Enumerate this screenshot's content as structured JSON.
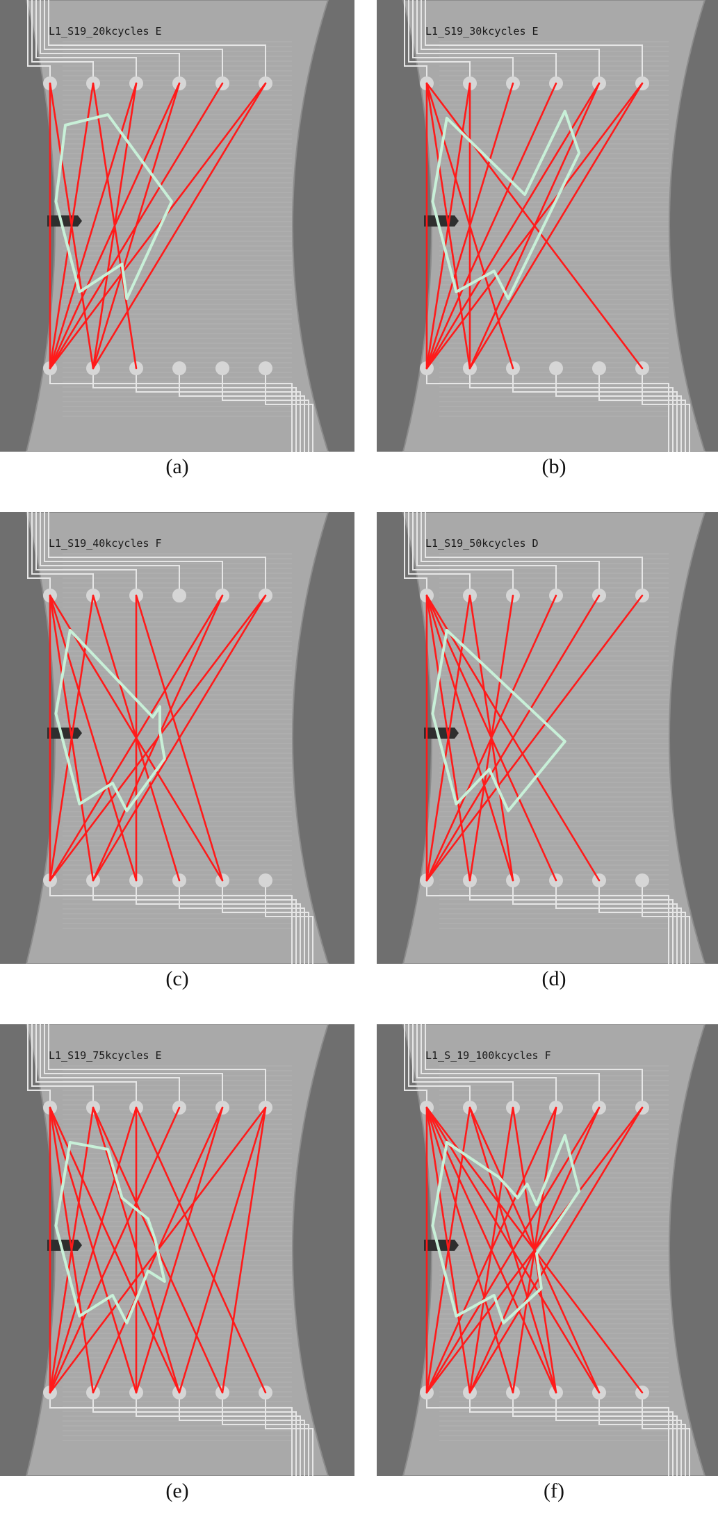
{
  "figure": {
    "panels": [
      {
        "id": "a",
        "label": "L1_S19_20kcycles E",
        "caption": "(a)",
        "paths": [
          [
            0,
            0
          ],
          [
            0,
            1
          ],
          [
            1,
            0
          ],
          [
            1,
            2
          ],
          [
            2,
            0
          ],
          [
            2,
            1
          ],
          [
            3,
            0
          ],
          [
            3,
            1
          ],
          [
            4,
            0
          ],
          [
            5,
            0
          ],
          [
            5,
            1
          ]
        ],
        "polygon": [
          [
            0.1,
            0.2
          ],
          [
            0.28,
            0.17
          ],
          [
            0.55,
            0.42
          ],
          [
            0.36,
            0.7
          ],
          [
            0.34,
            0.6
          ],
          [
            0.16,
            0.68
          ],
          [
            0.06,
            0.42
          ]
        ]
      },
      {
        "id": "b",
        "label": "L1_S19_30kcycles E",
        "caption": "(b)",
        "paths": [
          [
            0,
            0
          ],
          [
            0,
            1
          ],
          [
            0,
            2
          ],
          [
            0,
            5
          ],
          [
            1,
            0
          ],
          [
            1,
            1
          ],
          [
            2,
            0
          ],
          [
            3,
            0
          ],
          [
            4,
            0
          ],
          [
            4,
            1
          ],
          [
            5,
            0
          ],
          [
            5,
            1
          ]
        ],
        "polygon": [
          [
            0.12,
            0.18
          ],
          [
            0.45,
            0.4
          ],
          [
            0.62,
            0.16
          ],
          [
            0.68,
            0.28
          ],
          [
            0.38,
            0.7
          ],
          [
            0.32,
            0.62
          ],
          [
            0.16,
            0.68
          ],
          [
            0.06,
            0.42
          ]
        ]
      },
      {
        "id": "c",
        "label": "L1_S19_40kcycles F",
        "caption": "(c)",
        "paths": [
          [
            0,
            0
          ],
          [
            0,
            1
          ],
          [
            0,
            2
          ],
          [
            0,
            4
          ],
          [
            1,
            0
          ],
          [
            1,
            3
          ],
          [
            2,
            2
          ],
          [
            2,
            4
          ],
          [
            4,
            0
          ],
          [
            4,
            1
          ],
          [
            5,
            0
          ],
          [
            5,
            1
          ]
        ],
        "polygon": [
          [
            0.12,
            0.18
          ],
          [
            0.47,
            0.43
          ],
          [
            0.5,
            0.4
          ],
          [
            0.5,
            0.47
          ],
          [
            0.52,
            0.55
          ],
          [
            0.36,
            0.7
          ],
          [
            0.3,
            0.62
          ],
          [
            0.16,
            0.68
          ],
          [
            0.06,
            0.42
          ]
        ]
      },
      {
        "id": "d",
        "label": "L1_S19_50kcycles D",
        "caption": "(d)",
        "paths": [
          [
            0,
            0
          ],
          [
            0,
            1
          ],
          [
            0,
            2
          ],
          [
            0,
            3
          ],
          [
            0,
            4
          ],
          [
            1,
            0
          ],
          [
            1,
            2
          ],
          [
            2,
            1
          ],
          [
            3,
            0
          ],
          [
            4,
            0
          ],
          [
            5,
            0
          ]
        ],
        "polygon": [
          [
            0.12,
            0.18
          ],
          [
            0.62,
            0.5
          ],
          [
            0.38,
            0.7
          ],
          [
            0.3,
            0.58
          ],
          [
            0.16,
            0.68
          ],
          [
            0.06,
            0.42
          ]
        ]
      },
      {
        "id": "e",
        "label": "L1_S19_75kcycles E",
        "caption": "(e)",
        "paths": [
          [
            0,
            0
          ],
          [
            0,
            1
          ],
          [
            0,
            2
          ],
          [
            0,
            3
          ],
          [
            1,
            0
          ],
          [
            1,
            3
          ],
          [
            1,
            4
          ],
          [
            2,
            0
          ],
          [
            2,
            2
          ],
          [
            2,
            5
          ],
          [
            3,
            0
          ],
          [
            4,
            1
          ],
          [
            4,
            2
          ],
          [
            5,
            0
          ],
          [
            5,
            3
          ],
          [
            5,
            4
          ]
        ],
        "polygon": [
          [
            0.12,
            0.18
          ],
          [
            0.28,
            0.2
          ],
          [
            0.34,
            0.34
          ],
          [
            0.45,
            0.4
          ],
          [
            0.48,
            0.46
          ],
          [
            0.52,
            0.58
          ],
          [
            0.45,
            0.55
          ],
          [
            0.36,
            0.7
          ],
          [
            0.3,
            0.62
          ],
          [
            0.16,
            0.68
          ],
          [
            0.06,
            0.42
          ]
        ]
      },
      {
        "id": "f",
        "label": "L1_S_19_100kcycles F",
        "caption": "(f)",
        "paths": [
          [
            0,
            0
          ],
          [
            0,
            1
          ],
          [
            0,
            2
          ],
          [
            0,
            3
          ],
          [
            0,
            4
          ],
          [
            0,
            5
          ],
          [
            1,
            0
          ],
          [
            1,
            3
          ],
          [
            1,
            4
          ],
          [
            2,
            1
          ],
          [
            2,
            3
          ],
          [
            3,
            0
          ],
          [
            3,
            2
          ],
          [
            4,
            0
          ],
          [
            4,
            1
          ],
          [
            5,
            0
          ],
          [
            5,
            1
          ]
        ],
        "polygon": [
          [
            0.12,
            0.18
          ],
          [
            0.34,
            0.28
          ],
          [
            0.42,
            0.34
          ],
          [
            0.46,
            0.3
          ],
          [
            0.5,
            0.36
          ],
          [
            0.62,
            0.16
          ],
          [
            0.68,
            0.32
          ],
          [
            0.5,
            0.5
          ],
          [
            0.52,
            0.6
          ],
          [
            0.36,
            0.7
          ],
          [
            0.32,
            0.62
          ],
          [
            0.16,
            0.68
          ],
          [
            0.06,
            0.42
          ]
        ]
      }
    ]
  },
  "colors": {
    "page": "#ffffff",
    "backdrop": "#6f6f6f",
    "specimen": "#a9a9a9",
    "specimen_edge": "#8c8c8c",
    "electrode": "#d6d6d6",
    "trace": "#e6e6e6",
    "path": "#ff1a1a",
    "damage": "#c8f0d8",
    "notch": "#2e2e2e"
  }
}
